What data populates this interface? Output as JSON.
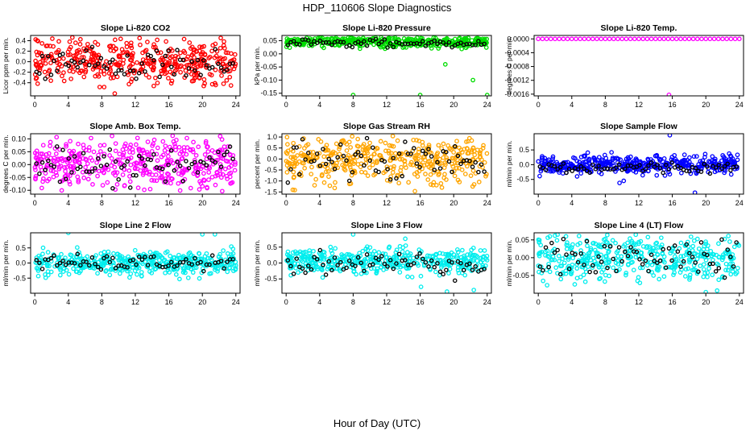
{
  "figure": {
    "title": "HDP_110606  Slope Diagnostics",
    "xlabel": "Hour of Day (UTC)"
  },
  "chart_data": [
    {
      "type": "scatter",
      "title": "Slope Li-820 CO2",
      "ylabel": "Licor ppm per min.",
      "x_ticks": [
        0,
        4,
        8,
        12,
        16,
        20,
        24
      ],
      "xlim": [
        -0.5,
        24.5
      ],
      "y_ticks": [
        -0.4,
        -0.2,
        0.0,
        0.2,
        0.4
      ],
      "y_tick_labels": [
        "-0.4",
        "-0.2",
        "0.0",
        "0.2",
        "0.4"
      ],
      "ylim": [
        -0.65,
        0.5
      ],
      "color": "#ff0000",
      "accent": "#000000",
      "series": [
        {
          "name": "main",
          "center": 0.0,
          "spread": 0.2
        },
        {
          "name": "highlight",
          "center": -0.05,
          "spread": 0.15
        }
      ]
    },
    {
      "type": "scatter",
      "title": "Slope Li-820 Pressure",
      "ylabel": "kPa per min.",
      "x_ticks": [
        0,
        4,
        8,
        12,
        16,
        20,
        24
      ],
      "xlim": [
        -0.5,
        24.5
      ],
      "y_ticks": [
        -0.15,
        -0.1,
        -0.05,
        0.0,
        0.05
      ],
      "y_tick_labels": [
        "-0.15",
        "-0.10",
        "-0.05",
        "0.00",
        "0.05"
      ],
      "ylim": [
        -0.16,
        0.07
      ],
      "color": "#00dd00",
      "accent": "#000000",
      "series": [
        {
          "name": "main",
          "center": 0.045,
          "spread": 0.01
        },
        {
          "name": "highlight",
          "center": 0.04,
          "spread": 0.008
        }
      ],
      "outliers": [
        {
          "x": 8,
          "y": -0.157
        },
        {
          "x": 16,
          "y": -0.157
        },
        {
          "x": 19,
          "y": -0.04
        },
        {
          "x": 22.3,
          "y": -0.1
        },
        {
          "x": 24,
          "y": -0.157
        }
      ]
    },
    {
      "type": "scatter",
      "title": "Slope Li-820 Temp.",
      "ylabel": "degrees C per min.",
      "x_ticks": [
        0,
        4,
        8,
        12,
        16,
        20,
        24
      ],
      "xlim": [
        -0.5,
        24.5
      ],
      "y_ticks": [
        -0.0016,
        -0.0012,
        -0.0008,
        -0.0004,
        0.0
      ],
      "y_tick_labels": [
        "-0.0016",
        "-0.0012",
        "-0.0008",
        "-0.0004",
        "0.0000"
      ],
      "ylim": [
        -0.00165,
        0.0001
      ],
      "color": "#ff00ff",
      "accent": "#000000",
      "series": [
        {
          "name": "main",
          "center": 0.0,
          "spread": 0.0
        }
      ],
      "outliers": [
        {
          "x": 15.6,
          "y": -0.00162
        }
      ]
    },
    {
      "type": "scatter",
      "title": "Slope Amb. Box Temp.",
      "ylabel": "degrees C per min.",
      "x_ticks": [
        0,
        4,
        8,
        12,
        16,
        20,
        24
      ],
      "xlim": [
        -0.5,
        24.5
      ],
      "y_ticks": [
        -0.1,
        -0.05,
        0.0,
        0.05,
        0.1
      ],
      "y_tick_labels": [
        "-0.10",
        "-0.05",
        "0.00",
        "0.05",
        "0.10"
      ],
      "ylim": [
        -0.115,
        0.12
      ],
      "color": "#ff00ff",
      "accent": "#000000",
      "series": [
        {
          "name": "main",
          "center": 0.0,
          "spread": 0.05
        },
        {
          "name": "highlight",
          "center": -0.01,
          "spread": 0.04
        }
      ]
    },
    {
      "type": "scatter",
      "title": "Slope Gas Stream RH",
      "ylabel": "percent per min.",
      "x_ticks": [
        0,
        4,
        8,
        12,
        16,
        20,
        24
      ],
      "xlim": [
        -0.5,
        24.5
      ],
      "y_ticks": [
        -1.5,
        -1.0,
        -0.5,
        0.0,
        0.5,
        1.0
      ],
      "y_tick_labels": [
        "-1.5",
        "-1.0",
        "-0.5",
        "0.0",
        "0.5",
        "1.0"
      ],
      "ylim": [
        -1.6,
        1.15
      ],
      "color": "#ffa500",
      "accent": "#000000",
      "series": [
        {
          "name": "main",
          "center": 0.0,
          "spread": 0.5
        },
        {
          "name": "highlight",
          "center": -0.1,
          "spread": 0.4
        }
      ]
    },
    {
      "type": "scatter",
      "title": "Slope Sample Flow",
      "ylabel": "ml/min per min.",
      "x_ticks": [
        0,
        4,
        8,
        12,
        16,
        20,
        24
      ],
      "xlim": [
        -0.5,
        24.5
      ],
      "y_ticks": [
        -0.5,
        0.0,
        0.5
      ],
      "y_tick_labels": [
        "-0.5",
        "0.0",
        "0.5"
      ],
      "ylim": [
        -1.0,
        1.05
      ],
      "color": "#0000ff",
      "accent": "#000000",
      "series": [
        {
          "name": "main",
          "center": 0.0,
          "spread": 0.15
        },
        {
          "name": "highlight",
          "center": -0.1,
          "spread": 0.1
        }
      ],
      "outliers": [
        {
          "x": 15.7,
          "y": 1.0
        },
        {
          "x": 18.7,
          "y": -0.95
        },
        {
          "x": 9.7,
          "y": -0.62
        },
        {
          "x": 10.2,
          "y": -0.55
        }
      ]
    },
    {
      "type": "scatter",
      "title": "Slope Line 2 Flow",
      "ylabel": "ml/min per min.",
      "x_ticks": [
        0,
        4,
        8,
        12,
        16,
        20,
        24
      ],
      "xlim": [
        -0.5,
        24.5
      ],
      "y_ticks": [
        -0.5,
        0.0,
        0.5
      ],
      "y_tick_labels": [
        "-0.5",
        "0.0",
        "0.5"
      ],
      "ylim": [
        -1.0,
        1.0
      ],
      "color": "#00eeee",
      "accent": "#000000",
      "series": [
        {
          "name": "main",
          "center": 0.0,
          "spread": 0.2
        },
        {
          "name": "highlight",
          "center": 0.0,
          "spread": 0.12
        }
      ],
      "outliers": [
        {
          "x": 4.0,
          "y": 1.0
        },
        {
          "x": 20.0,
          "y": 0.95
        },
        {
          "x": 21.5,
          "y": 0.95
        }
      ]
    },
    {
      "type": "scatter",
      "title": "Slope Line 3 Flow",
      "ylabel": "ml/min per min.",
      "x_ticks": [
        0,
        4,
        8,
        12,
        16,
        20,
        24
      ],
      "xlim": [
        -0.5,
        24.5
      ],
      "y_ticks": [
        -0.5,
        0.0,
        0.5
      ],
      "y_tick_labels": [
        "-0.5",
        "0.0",
        "0.5"
      ],
      "ylim": [
        -0.95,
        0.95
      ],
      "color": "#00eeee",
      "accent": "#000000",
      "series": [
        {
          "name": "main",
          "center": 0.05,
          "spread": 0.2
        },
        {
          "name": "highlight",
          "center": 0.0,
          "spread": 0.18
        }
      ],
      "outliers": [
        {
          "x": 19.2,
          "y": -0.9
        },
        {
          "x": 16.1,
          "y": -0.75
        },
        {
          "x": 22.4,
          "y": -0.85
        },
        {
          "x": 8.0,
          "y": 0.9
        }
      ]
    },
    {
      "type": "scatter",
      "title": "Slope Line 4 (LT) Flow",
      "ylabel": "ml/min per min.",
      "x_ticks": [
        0,
        4,
        8,
        12,
        16,
        20,
        24
      ],
      "xlim": [
        -0.5,
        24.5
      ],
      "y_ticks": [
        -0.05,
        0.0,
        0.05
      ],
      "y_tick_labels": [
        "-0.05",
        "0.00",
        "0.05"
      ],
      "ylim": [
        -0.1,
        0.07
      ],
      "color": "#00eeee",
      "accent": "#000000",
      "series": [
        {
          "name": "main",
          "center": 0.0,
          "spread": 0.03
        },
        {
          "name": "highlight",
          "center": 0.0,
          "spread": 0.025
        }
      ],
      "outliers": [
        {
          "x": 20.0,
          "y": -0.097
        },
        {
          "x": 2.3,
          "y": 0.065
        }
      ]
    }
  ]
}
